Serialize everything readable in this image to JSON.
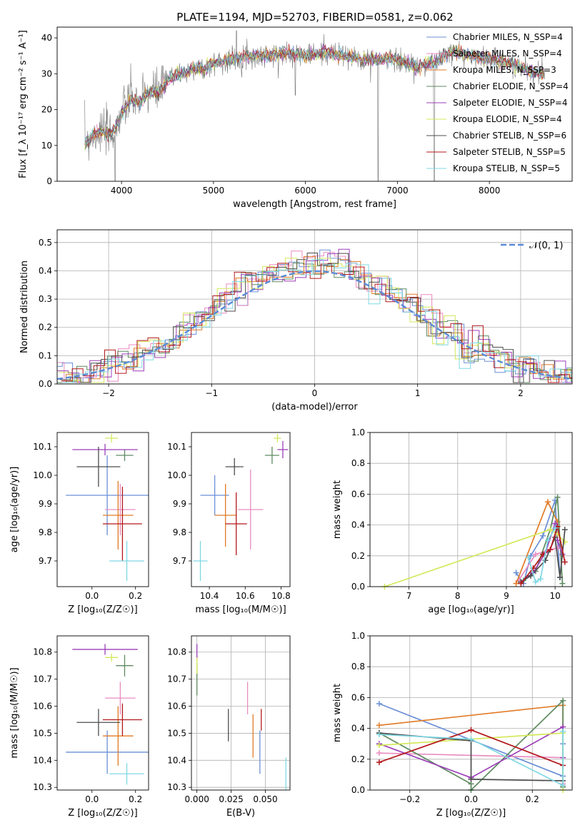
{
  "figure_title": "PLATE=1194, MJD=52703, FIBERID=0581, z=0.062",
  "chart_data": [
    {
      "id": "spectrum",
      "type": "line",
      "title": "PLATE=1194, MJD=52703, FIBERID=0581, z=0.062",
      "xlabel": "wavelength [Angstrom, rest frame]",
      "ylabel": "Flux [f_λ 10⁻¹⁷ erg cm⁻² s⁻¹ A⁻¹]",
      "xlim": [
        3300,
        8900
      ],
      "ylim": [
        0,
        43
      ],
      "xticks": [
        4000,
        5000,
        6000,
        7000,
        8000
      ],
      "yticks": [
        0,
        10,
        20,
        30,
        40
      ],
      "legend_loc": "upper right",
      "legend": [
        {
          "name": "Chabrier MILES, N_SSP=4",
          "color": "#6b8fd6"
        },
        {
          "name": "Salpeter MILES, N_SSP=4",
          "color": "#e88cc0"
        },
        {
          "name": "Kroupa MILES, N_SSP=3",
          "color": "#e07b27"
        },
        {
          "name": "Chabrier ELODIE, N_SSP=4",
          "color": "#5e8a60"
        },
        {
          "name": "Salpeter ELODIE, N_SSP=4",
          "color": "#9c3fb8"
        },
        {
          "name": "Kroupa ELODIE, N_SSP=4",
          "color": "#d4e85a"
        },
        {
          "name": "Chabrier STELIB, N_SSP=6",
          "color": "#4d4d4d"
        },
        {
          "name": "Salpeter STELIB, N_SSP=5",
          "color": "#b3181c"
        },
        {
          "name": "Kroupa STELIB, N_SSP=5",
          "color": "#7fd8e3"
        }
      ],
      "continuum": {
        "x": [
          3600,
          3750,
          3900,
          4000,
          4100,
          4200,
          4300,
          4400,
          4500,
          4600,
          4700,
          4800,
          4900,
          5000,
          5200,
          5400,
          5600,
          5800,
          6000,
          6200,
          6400,
          6600,
          6800,
          7000,
          7200,
          7400,
          7500,
          7600,
          7800,
          8000,
          8200,
          8400,
          8600
        ],
        "y": [
          11,
          14,
          13,
          19,
          23,
          22,
          25,
          25,
          28,
          30,
          30,
          32,
          31,
          33,
          34,
          35,
          35,
          36,
          35,
          36,
          35,
          34,
          34,
          34,
          32,
          33,
          35,
          36,
          35,
          34,
          33,
          31,
          30
        ]
      },
      "features": [
        {
          "label": "dip",
          "x": 3930,
          "y": 0
        },
        {
          "label": "dip",
          "x": 5890,
          "y": 24
        },
        {
          "label": "dip",
          "x": 6790,
          "y": 0
        },
        {
          "label": "dip",
          "x": 7400,
          "y": 0
        },
        {
          "label": "spike",
          "x": 5250,
          "y": 42
        }
      ]
    },
    {
      "id": "residuals",
      "type": "step",
      "xlabel": "(data-model)/error",
      "ylabel": "Normed distribution",
      "xlim": [
        -2.5,
        2.5
      ],
      "ylim": [
        0,
        0.545
      ],
      "xticks": [
        -2,
        -1,
        0,
        1,
        2
      ],
      "xtick_labels": [
        "−2",
        "−1",
        "0",
        "1",
        "2"
      ],
      "yticks": [
        0.0,
        0.1,
        0.2,
        0.3,
        0.4,
        0.5
      ],
      "grid": true,
      "legend_loc": "upper right",
      "reference": {
        "name": "𝒩(0, 1)",
        "color": "#5a8ad6",
        "dashed": true
      }
    },
    {
      "id": "age_vs_Z",
      "type": "errorbar",
      "xlabel": "Z [log₁₀(Z/Z☉)]",
      "ylabel": "age  [log₁₀(age/yr)]",
      "xlim": [
        -0.16,
        0.26
      ],
      "ylim": [
        9.61,
        10.15
      ],
      "xticks": [
        0.0,
        0.2
      ],
      "xtick_labels": [
        "0.0",
        "0.2"
      ],
      "yticks": [
        9.7,
        9.8,
        9.9,
        10.0,
        10.1
      ],
      "points": [
        {
          "x": 0.07,
          "y": 9.93,
          "xerr": 0.19,
          "yerr": 0.14,
          "color": "#6b8fd6"
        },
        {
          "x": 0.13,
          "y": 9.88,
          "xerr": 0.07,
          "yerr": 0.09,
          "color": "#e88cc0"
        },
        {
          "x": 0.12,
          "y": 9.86,
          "xerr": 0.07,
          "yerr": 0.12,
          "color": "#e07b27"
        },
        {
          "x": 0.15,
          "y": 10.07,
          "xerr": 0.04,
          "yerr": 0.02,
          "color": "#5e8a60"
        },
        {
          "x": 0.06,
          "y": 10.09,
          "xerr": 0.15,
          "yerr": 0.02,
          "color": "#9c3fb8"
        },
        {
          "x": 0.09,
          "y": 10.13,
          "xerr": 0.03,
          "yerr": 0.015,
          "color": "#d4e85a"
        },
        {
          "x": 0.03,
          "y": 10.03,
          "xerr": 0.1,
          "yerr": 0.07,
          "color": "#4d4d4d"
        },
        {
          "x": 0.14,
          "y": 9.83,
          "xerr": 0.09,
          "yerr": 0.13,
          "color": "#b3181c"
        },
        {
          "x": 0.16,
          "y": 9.7,
          "xerr": 0.08,
          "yerr": 0.07,
          "color": "#7fd8e3"
        }
      ]
    },
    {
      "id": "age_vs_mass",
      "type": "errorbar",
      "xlabel": "mass [log₁₀(M/M☉)]",
      "ylabel": "",
      "xlim": [
        10.3,
        10.85
      ],
      "ylim": [
        9.61,
        10.15
      ],
      "xticks": [
        10.4,
        10.6,
        10.8
      ],
      "xtick_labels": [
        "10.4",
        "10.6",
        "10.8"
      ],
      "yticks": [
        9.7,
        9.8,
        9.9,
        10.0,
        10.1
      ],
      "points": [
        {
          "x": 10.43,
          "y": 9.93,
          "xerr": 0.08,
          "yerr": 0.07,
          "color": "#6b8fd6"
        },
        {
          "x": 10.63,
          "y": 9.88,
          "xerr": 0.07,
          "yerr": 0.14,
          "color": "#e88cc0"
        },
        {
          "x": 10.49,
          "y": 9.86,
          "xerr": 0.06,
          "yerr": 0.11,
          "color": "#e07b27"
        },
        {
          "x": 10.75,
          "y": 10.07,
          "xerr": 0.04,
          "yerr": 0.03,
          "color": "#5e8a60"
        },
        {
          "x": 10.81,
          "y": 10.09,
          "xerr": 0.03,
          "yerr": 0.03,
          "color": "#9c3fb8"
        },
        {
          "x": 10.78,
          "y": 10.13,
          "xerr": 0.02,
          "yerr": 0.015,
          "color": "#d4e85a"
        },
        {
          "x": 10.54,
          "y": 10.03,
          "xerr": 0.05,
          "yerr": 0.03,
          "color": "#4d4d4d"
        },
        {
          "x": 10.55,
          "y": 9.83,
          "xerr": 0.06,
          "yerr": 0.11,
          "color": "#b3181c"
        },
        {
          "x": 10.35,
          "y": 9.7,
          "xerr": 0.04,
          "yerr": 0.07,
          "color": "#7fd8e3"
        }
      ]
    },
    {
      "id": "weight_vs_age",
      "type": "line",
      "xlabel": "age  [log₁₀(age/yr)]",
      "ylabel": "mass weight",
      "xlim": [
        6.2,
        10.35
      ],
      "ylim": [
        0,
        1.0
      ],
      "xticks": [
        7,
        8,
        9,
        10
      ],
      "yticks": [
        0.0,
        0.2,
        0.4,
        0.6,
        0.8,
        1.0
      ],
      "grid": true,
      "series": [
        {
          "color": "#6b8fd6",
          "x": [
            9.2,
            9.35,
            9.5,
            9.75,
            10.0,
            10.1
          ],
          "y": [
            0.09,
            0.02,
            0.2,
            0.33,
            0.56,
            0.06
          ]
        },
        {
          "color": "#e88cc0",
          "x": [
            9.25,
            9.6,
            9.9,
            10.05
          ],
          "y": [
            0.04,
            0.21,
            0.24,
            0.25
          ]
        },
        {
          "color": "#e07b27",
          "x": [
            9.2,
            9.85,
            10.05
          ],
          "y": [
            0.02,
            0.55,
            0.42
          ]
        },
        {
          "color": "#5e8a60",
          "x": [
            9.35,
            9.6,
            9.9,
            10.05,
            10.15
          ],
          "y": [
            0.04,
            0.1,
            0.37,
            0.58,
            0.02
          ]
        },
        {
          "color": "#9c3fb8",
          "x": [
            9.3,
            9.55,
            9.8,
            10.0,
            10.05,
            10.15
          ],
          "y": [
            0.03,
            0.09,
            0.22,
            0.41,
            0.3,
            0.21
          ]
        },
        {
          "color": "#d4e85a",
          "x": [
            6.5,
            9.9,
            10.05,
            10.2
          ],
          "y": [
            0.0,
            0.37,
            0.34,
            0.29
          ]
        },
        {
          "color": "#4d4d4d",
          "x": [
            9.3,
            9.5,
            9.8,
            10.0,
            10.1,
            10.2
          ],
          "y": [
            0.03,
            0.07,
            0.17,
            0.32,
            0.06,
            0.37
          ]
        },
        {
          "color": "#b3181c",
          "x": [
            9.3,
            9.55,
            9.75,
            9.9,
            10.05,
            10.2
          ],
          "y": [
            0.02,
            0.12,
            0.21,
            0.24,
            0.39,
            0.16
          ]
        },
        {
          "color": "#7fd8e3",
          "x": [
            9.45,
            9.6,
            9.7,
            9.85,
            10.0
          ],
          "y": [
            0.19,
            0.03,
            0.05,
            0.3,
            0.38
          ]
        }
      ]
    },
    {
      "id": "mass_vs_Z",
      "type": "errorbar",
      "xlabel": "Z [log₁₀(Z/Z☉)]",
      "ylabel": "mass [log₁₀(M/M☉)]",
      "xlim": [
        -0.16,
        0.26
      ],
      "ylim": [
        10.29,
        10.86
      ],
      "xticks": [
        0.0,
        0.2
      ],
      "xtick_labels": [
        "0.0",
        "0.2"
      ],
      "yticks": [
        10.3,
        10.4,
        10.5,
        10.6,
        10.7,
        10.8
      ],
      "points": [
        {
          "x": 0.07,
          "y": 10.43,
          "xerr": 0.19,
          "yerr": 0.08,
          "color": "#6b8fd6"
        },
        {
          "x": 0.13,
          "y": 10.63,
          "xerr": 0.07,
          "yerr": 0.06,
          "color": "#e88cc0"
        },
        {
          "x": 0.12,
          "y": 10.49,
          "xerr": 0.07,
          "yerr": 0.11,
          "color": "#e07b27"
        },
        {
          "x": 0.15,
          "y": 10.75,
          "xerr": 0.04,
          "yerr": 0.04,
          "color": "#5e8a60"
        },
        {
          "x": 0.06,
          "y": 10.81,
          "xerr": 0.15,
          "yerr": 0.02,
          "color": "#9c3fb8"
        },
        {
          "x": 0.09,
          "y": 10.78,
          "xerr": 0.03,
          "yerr": 0.015,
          "color": "#d4e85a"
        },
        {
          "x": 0.03,
          "y": 10.54,
          "xerr": 0.1,
          "yerr": 0.05,
          "color": "#4d4d4d"
        },
        {
          "x": 0.14,
          "y": 10.55,
          "xerr": 0.09,
          "yerr": 0.06,
          "color": "#b3181c"
        },
        {
          "x": 0.16,
          "y": 10.35,
          "xerr": 0.08,
          "yerr": 0.04,
          "color": "#7fd8e3"
        }
      ]
    },
    {
      "id": "mass_vs_ebv",
      "type": "errorbar",
      "xlabel": "E(B-V)",
      "ylabel": "",
      "xlim": [
        -0.004,
        0.068
      ],
      "ylim": [
        10.29,
        10.86
      ],
      "xticks": [
        0.0,
        0.025,
        0.05
      ],
      "xtick_labels": [
        "0.000",
        "0.025",
        "0.050"
      ],
      "yticks": [
        10.3,
        10.4,
        10.5,
        10.6,
        10.7,
        10.8
      ],
      "grid": true,
      "points": [
        {
          "x": 0.046,
          "y": 10.43,
          "xerr": 0,
          "yerr": 0.08,
          "color": "#6b8fd6"
        },
        {
          "x": 0.037,
          "y": 10.63,
          "xerr": 0,
          "yerr": 0.06,
          "color": "#e88cc0"
        },
        {
          "x": 0.041,
          "y": 10.49,
          "xerr": 0,
          "yerr": 0.08,
          "color": "#e07b27"
        },
        {
          "x": 0.0,
          "y": 10.7,
          "xerr": 0,
          "yerr": 0.06,
          "color": "#5e8a60"
        },
        {
          "x": 0.0,
          "y": 10.8,
          "xerr": 0,
          "yerr": 0.03,
          "color": "#9c3fb8"
        },
        {
          "x": 0.0,
          "y": 10.75,
          "xerr": 0,
          "yerr": 0.03,
          "color": "#d4e85a"
        },
        {
          "x": 0.023,
          "y": 10.53,
          "xerr": 0,
          "yerr": 0.06,
          "color": "#4d4d4d"
        },
        {
          "x": 0.047,
          "y": 10.55,
          "xerr": 0,
          "yerr": 0.04,
          "color": "#b3181c"
        },
        {
          "x": 0.065,
          "y": 10.35,
          "xerr": 0,
          "yerr": 0.06,
          "color": "#7fd8e3"
        }
      ]
    },
    {
      "id": "weight_vs_Z",
      "type": "line",
      "xlabel": "Z [log₁₀(Z/Z☉)]",
      "ylabel": "mass weight",
      "xlim": [
        -0.33,
        0.33
      ],
      "ylim": [
        0,
        1.0
      ],
      "xticks": [
        -0.2,
        0.0,
        0.2
      ],
      "xtick_labels": [
        "−0.2",
        "0.0",
        "0.2"
      ],
      "yticks": [
        0.0,
        0.2,
        0.4,
        0.6,
        0.8,
        1.0
      ],
      "grid": true,
      "series": [
        {
          "color": "#6b8fd6",
          "x": [
            -0.3,
            0.3,
            0.3
          ],
          "y": [
            0.56,
            0.09,
            0.3
          ]
        },
        {
          "color": "#e88cc0",
          "x": [
            -0.3,
            0.3,
            0.3
          ],
          "y": [
            0.24,
            0.21,
            0.04
          ]
        },
        {
          "color": "#e07b27",
          "x": [
            -0.3,
            0.3,
            0.3
          ],
          "y": [
            0.42,
            0.55,
            0.02
          ]
        },
        {
          "color": "#5e8a60",
          "x": [
            -0.3,
            0.0,
            0.0,
            0.3,
            0.3
          ],
          "y": [
            0.37,
            0.04,
            0.0,
            0.58,
            0.02
          ]
        },
        {
          "color": "#9c3fb8",
          "x": [
            -0.3,
            0.0,
            0.3,
            0.3
          ],
          "y": [
            0.3,
            0.08,
            0.41,
            0.21
          ]
        },
        {
          "color": "#d4e85a",
          "x": [
            -0.3,
            0.0,
            0.3,
            0.3
          ],
          "y": [
            0.29,
            0.33,
            0.37,
            0.0
          ]
        },
        {
          "color": "#4d4d4d",
          "x": [
            -0.3,
            0.0,
            0.0,
            0.3
          ],
          "y": [
            0.37,
            0.32,
            0.07,
            0.06
          ]
        },
        {
          "color": "#b3181c",
          "x": [
            -0.3,
            0.0,
            0.3
          ],
          "y": [
            0.18,
            0.39,
            0.16
          ]
        },
        {
          "color": "#7fd8e3",
          "x": [
            -0.3,
            0.0,
            0.3,
            0.3
          ],
          "y": [
            0.36,
            0.33,
            0.03,
            0.38
          ]
        }
      ]
    }
  ]
}
